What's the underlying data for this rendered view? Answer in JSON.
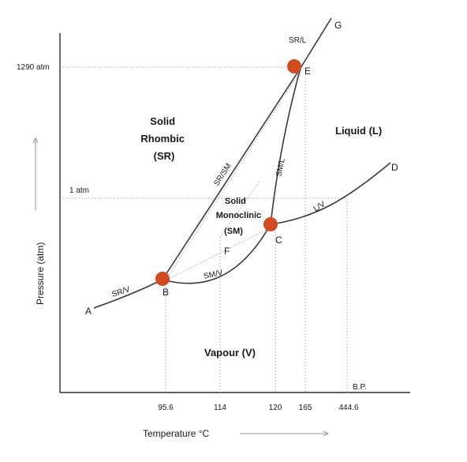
{
  "colors": {
    "curve": "#3a3a3a",
    "point": "#d24a1f",
    "guide": "#b8b8b8"
  },
  "axes": {
    "x_label": "Temperature °C",
    "y_label": "Pressure (atm)",
    "x_ticks": [
      "95.6",
      "114",
      "120",
      "165",
      "444.6"
    ],
    "bp_label": "B.P.",
    "y_ticks": [
      "1290 atm",
      "1 atm"
    ]
  },
  "points": {
    "A": "A",
    "B": "B",
    "C": "C",
    "D": "D",
    "E": "E",
    "F": "F",
    "G": "G"
  },
  "regions": {
    "rhombic": [
      "Solid",
      "Rhombic",
      "(SR)"
    ],
    "monoclinic": [
      "Solid",
      "Monoclinic",
      "(SM)"
    ],
    "liquid": "Liquid (L)",
    "vapour": "Vapour (V)"
  },
  "curve_labels": {
    "sr_v": "SR/V",
    "sm_v": "SM/V",
    "sr_sm": "SR/SM",
    "sm_l": "SM/L",
    "l_v": "L/V",
    "sr_l": "SR/L"
  }
}
